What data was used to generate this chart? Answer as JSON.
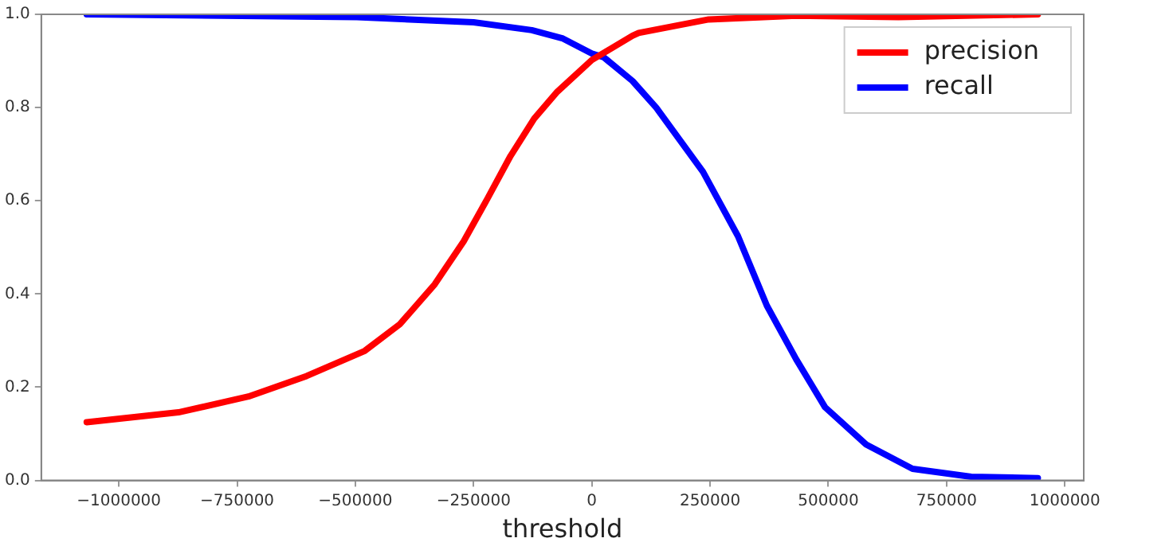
{
  "chart_data": {
    "type": "line",
    "xlabel": "threshold",
    "xlim": [
      -1164000,
      1040000
    ],
    "ylim": [
      0,
      1
    ],
    "xticks": [
      {
        "value": -1000000,
        "label": "−1000000"
      },
      {
        "value": -750000,
        "label": "−750000"
      },
      {
        "value": -500000,
        "label": "−500000"
      },
      {
        "value": -250000,
        "label": "−250000"
      },
      0,
      250000,
      500000,
      750000,
      1000000
    ],
    "yticks": [
      {
        "value": 0,
        "label": "0.0"
      },
      0.2,
      0.4,
      0.6,
      0.8,
      {
        "value": 1,
        "label": "1.0"
      }
    ],
    "grid": false,
    "legend": "top right",
    "marker": "none",
    "line_style": "solid",
    "series": [
      {
        "name": "precision",
        "color": "#ff0000",
        "x": [
          -1068000,
          -874000,
          -726000,
          -603000,
          -480000,
          -406000,
          -332000,
          -271000,
          -221000,
          -172000,
          -122000,
          -73000,
          0,
          86000,
          99000,
          247000,
          432000,
          648000,
          943000
        ],
        "values": [
          0.125,
          0.146,
          0.18,
          0.224,
          0.278,
          0.335,
          0.421,
          0.513,
          0.604,
          0.696,
          0.776,
          0.834,
          0.902,
          0.954,
          0.96,
          0.989,
          0.997,
          0.994,
          1.0
        ]
      },
      {
        "name": "recall",
        "color": "#0000ff",
        "x": [
          -1068000,
          -497000,
          -250000,
          -127000,
          -61000,
          0,
          25000,
          86000,
          136000,
          235000,
          309000,
          370000,
          432000,
          493000,
          580000,
          678000,
          802000,
          943000
        ],
        "values": [
          1.0,
          0.994,
          0.983,
          0.966,
          0.948,
          0.916,
          0.908,
          0.857,
          0.8,
          0.662,
          0.524,
          0.375,
          0.26,
          0.157,
          0.077,
          0.025,
          0.008,
          0.005
        ]
      }
    ]
  }
}
